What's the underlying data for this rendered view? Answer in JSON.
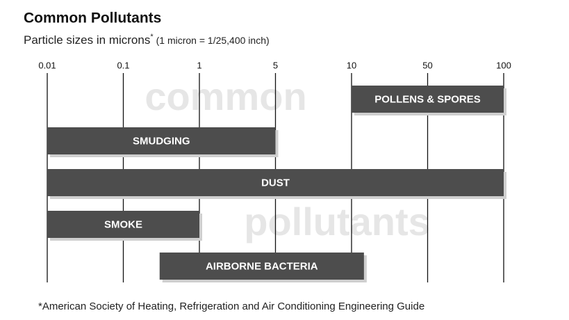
{
  "chart_data": {
    "type": "range-bar",
    "title": "Common Pollutants",
    "subtitle": "Particle sizes in microns",
    "subtitle_mark": "*",
    "subtitle_note": "(1 micron = 1/25,400 inch)",
    "watermark": [
      "common",
      "pollutants"
    ],
    "footnote": "*American Society of Heating, Refrigeration and Air Conditioning Engineering Guide",
    "categories": [
      "POLLENS & SPORES",
      "SMUDGING",
      "DUST",
      "SMOKE",
      "AIRBORNE BACTERIA"
    ],
    "starts": [
      10,
      0.01,
      0.01,
      0.01,
      0.3
    ],
    "ends": [
      100,
      5,
      100,
      1,
      13
    ],
    "color": "#4d4d4d",
    "shadow_color": "#cfcfcf",
    "xlim": [
      0.01,
      100
    ],
    "xticks": [
      0.01,
      0.1,
      1,
      5,
      10,
      50,
      100
    ],
    "grid": true
  }
}
